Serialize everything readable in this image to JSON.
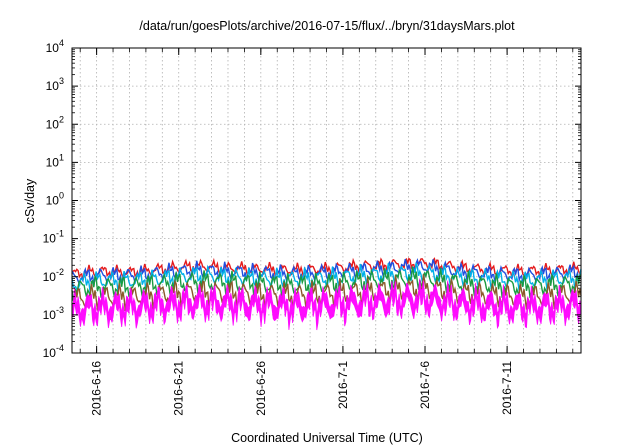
{
  "chart_data": {
    "type": "line",
    "title": "/data/run/goesPlots/archive/2016-07-15/flux/../bryn/31daysMars.plot",
    "xlabel": "Coordinated Universal Time (UTC)",
    "ylabel": "cSv/day",
    "yscale": "log",
    "ylim": [
      0.0001,
      10000
    ],
    "xlim": [
      "2016-06-14T12:00",
      "2016-07-15T12:00"
    ],
    "grid": true,
    "y_ticks": [
      {
        "base": "10",
        "exp": "-4",
        "value": 0.0001
      },
      {
        "base": "10",
        "exp": "-3",
        "value": 0.001
      },
      {
        "base": "10",
        "exp": "-2",
        "value": 0.01
      },
      {
        "base": "10",
        "exp": "-1",
        "value": 0.1
      },
      {
        "base": "10",
        "exp": "0",
        "value": 1
      },
      {
        "base": "10",
        "exp": "1",
        "value": 10
      },
      {
        "base": "10",
        "exp": "2",
        "value": 100
      },
      {
        "base": "10",
        "exp": "3",
        "value": 1000
      },
      {
        "base": "10",
        "exp": "4",
        "value": 10000
      }
    ],
    "x_ticks": [
      {
        "label": "2016-6-16",
        "date": "2016-06-16"
      },
      {
        "label": "2016-6-21",
        "date": "2016-06-21"
      },
      {
        "label": "2016-6-26",
        "date": "2016-06-26"
      },
      {
        "label": "2016-7-1",
        "date": "2016-07-01"
      },
      {
        "label": "2016-7-6",
        "date": "2016-07-06"
      },
      {
        "label": "2016-7-11",
        "date": "2016-07-11"
      }
    ],
    "x": [
      "2016-06-14",
      "2016-06-16",
      "2016-06-18",
      "2016-06-20",
      "2016-06-22",
      "2016-06-24",
      "2016-06-26",
      "2016-06-28",
      "2016-06-30",
      "2016-07-02",
      "2016-07-04",
      "2016-07-06",
      "2016-07-08",
      "2016-07-10",
      "2016-07-12",
      "2016-07-14",
      "2016-07-15"
    ],
    "series": [
      {
        "color": "#e41a1c",
        "values": [
          0.011,
          0.014,
          0.013,
          0.016,
          0.019,
          0.017,
          0.016,
          0.015,
          0.016,
          0.019,
          0.021,
          0.023,
          0.018,
          0.015,
          0.014,
          0.015,
          0.016
        ]
      },
      {
        "color": "#1f4fe0",
        "values": [
          0.009,
          0.011,
          0.011,
          0.013,
          0.015,
          0.014,
          0.013,
          0.012,
          0.013,
          0.015,
          0.017,
          0.019,
          0.014,
          0.012,
          0.011,
          0.012,
          0.013
        ]
      },
      {
        "color": "#00b0e8",
        "values": [
          0.006,
          0.008,
          0.008,
          0.009,
          0.011,
          0.01,
          0.009,
          0.009,
          0.009,
          0.011,
          0.012,
          0.013,
          0.01,
          0.009,
          0.008,
          0.009,
          0.009
        ]
      },
      {
        "color": "#1a9a40",
        "values": [
          0.0045,
          0.0055,
          0.0055,
          0.0065,
          0.0075,
          0.007,
          0.0065,
          0.006,
          0.0065,
          0.0075,
          0.0085,
          0.009,
          0.007,
          0.006,
          0.0055,
          0.006,
          0.0065
        ]
      },
      {
        "color": "#8b5a2b",
        "values": [
          0.0025,
          0.003,
          0.003,
          0.0035,
          0.004,
          0.0038,
          0.0035,
          0.0033,
          0.0035,
          0.004,
          0.0045,
          0.005,
          0.0038,
          0.0033,
          0.003,
          0.0033,
          0.0035
        ]
      },
      {
        "color": "#ff00ff",
        "values": [
          0.0018,
          0.0022,
          0.0022,
          0.0026,
          0.003,
          0.0028,
          0.0026,
          0.0024,
          0.0026,
          0.003,
          0.0034,
          0.0037,
          0.0028,
          0.0024,
          0.0022,
          0.0024,
          0.0026
        ]
      }
    ]
  }
}
